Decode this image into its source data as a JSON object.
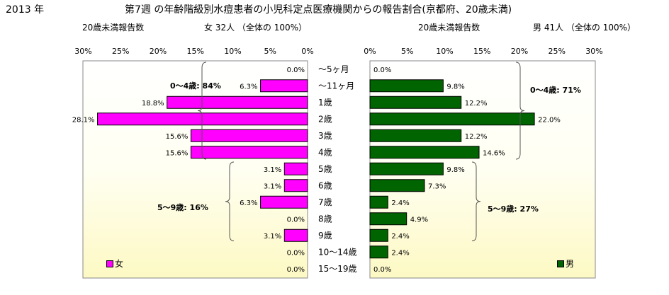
{
  "header": {
    "year": "2013 年",
    "title": "第7週 の年齢階級別水痘患者の小児科定点医療機関からの報告割合(京都府、20歳未満)"
  },
  "female_panel": {
    "count_label": "20歳未満報告数",
    "summary": "女  32人 （全体の  100%）",
    "legend": "女"
  },
  "male_panel": {
    "count_label": "20歳未満報告数",
    "summary": "男  41人 （全体の  100%）",
    "legend": "男"
  },
  "chart_data": {
    "type": "bar",
    "categories": [
      "～5ヶ月",
      "～11ヶ月",
      "1歳",
      "2歳",
      "3歳",
      "4歳",
      "5歳",
      "6歳",
      "7歳",
      "8歳",
      "9歳",
      "10～14歳",
      "15～19歳"
    ],
    "axis_ticks": [
      "0%",
      "5%",
      "10%",
      "15%",
      "20%",
      "25%",
      "30%"
    ],
    "xlim": [
      0,
      30
    ],
    "series": [
      {
        "name": "女",
        "color": "#ff00ff",
        "values": [
          0.0,
          6.3,
          18.8,
          28.1,
          15.6,
          15.6,
          3.1,
          3.1,
          6.3,
          0.0,
          3.1,
          0.0,
          0.0
        ],
        "labels": [
          "0.0%",
          "6.3%",
          "18.8%",
          "28.1%",
          "15.6%",
          "15.6%",
          "3.1%",
          "3.1%",
          "6.3%",
          "0.0%",
          "3.1%",
          "0.0%",
          "0.0%"
        ]
      },
      {
        "name": "男",
        "color": "#006400",
        "values": [
          0.0,
          9.8,
          12.2,
          22.0,
          12.2,
          14.6,
          9.8,
          7.3,
          2.4,
          4.9,
          2.4,
          2.4,
          0.0
        ],
        "labels": [
          "0.0%",
          "9.8%",
          "12.2%",
          "22.0%",
          "12.2%",
          "14.6%",
          "9.8%",
          "7.3%",
          "2.4%",
          "4.9%",
          "2.4%",
          "2.4%",
          "0.0%"
        ]
      }
    ],
    "annotations": {
      "female_0_4": "0～4歳: 84%",
      "female_5_9": "5～9歳: 16%",
      "male_0_4": "0～4歳: 71%",
      "male_5_9": "5～9歳: 27%"
    }
  }
}
